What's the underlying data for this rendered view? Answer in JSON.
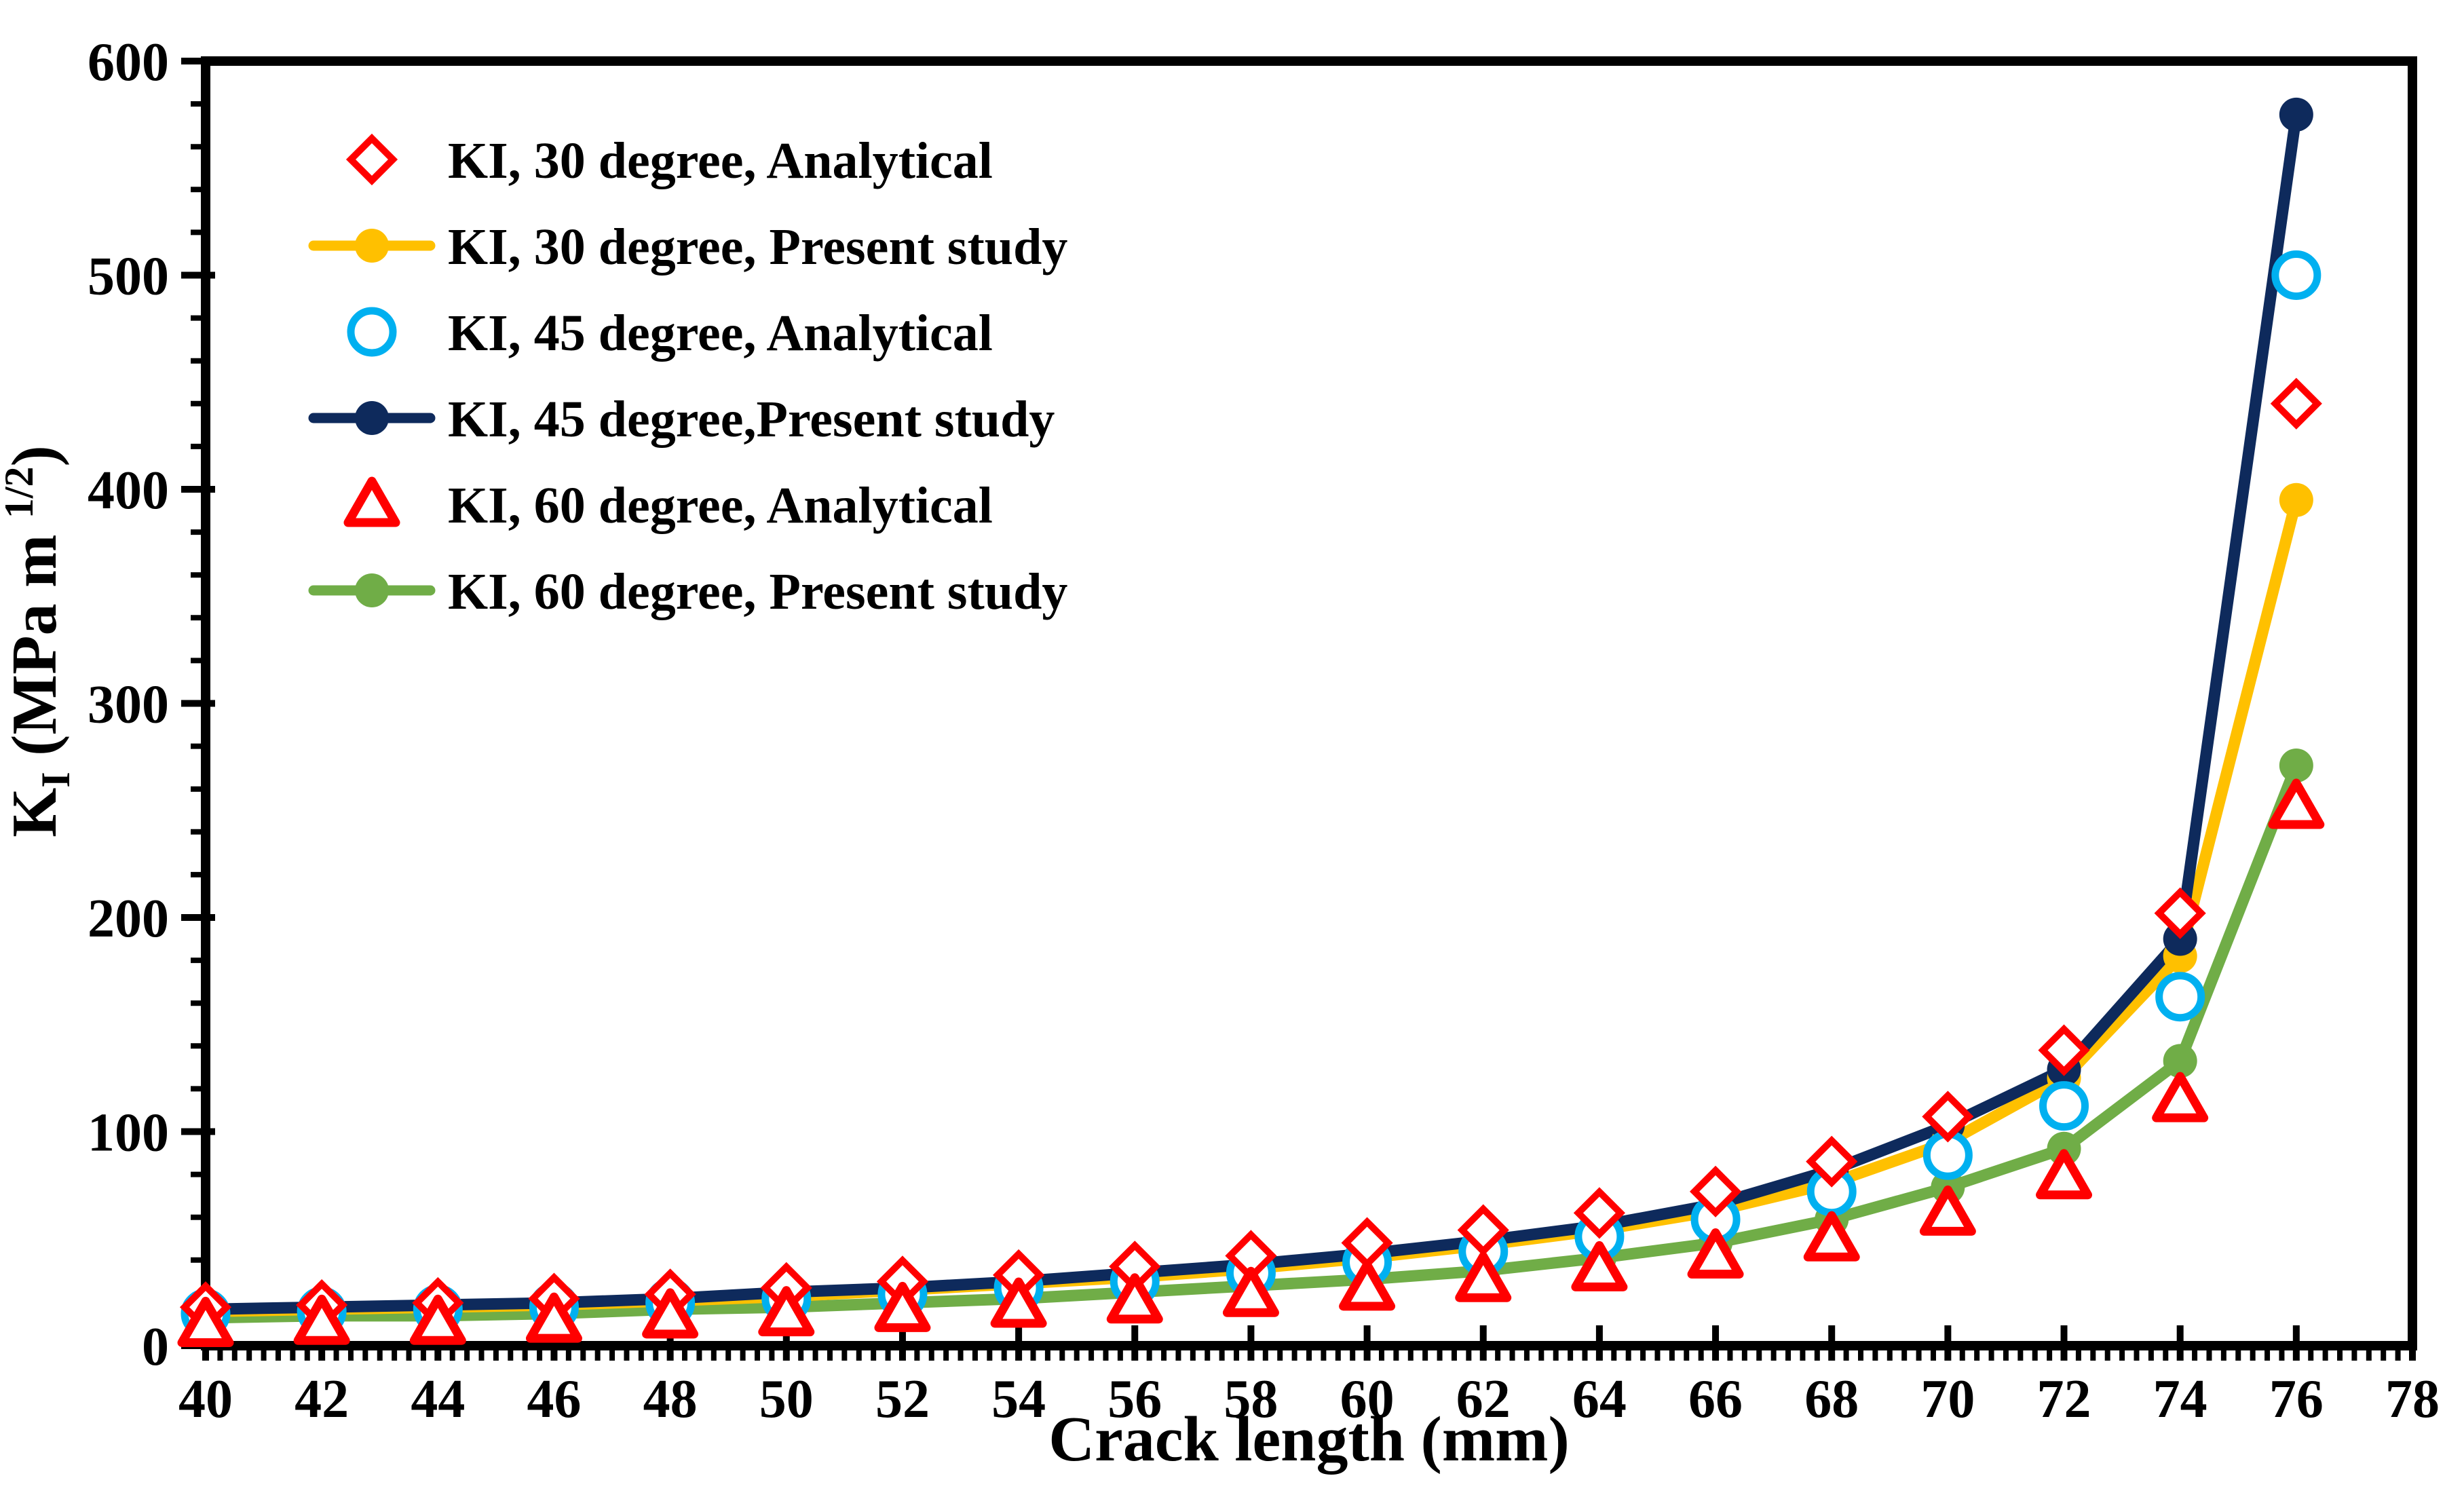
{
  "chart_data": {
    "type": "line",
    "title": "",
    "xlabel": "Crack length (mm)",
    "ylabel": "KI (MPa m 1/2)",
    "ylabel_parts": [
      {
        "text": "K",
        "style": "normal"
      },
      {
        "text": "I",
        "style": "sub"
      },
      {
        "text": " (MPa m ",
        "style": "normal"
      },
      {
        "text": "1/2",
        "style": "sup"
      },
      {
        "text": ")",
        "style": "normal"
      }
    ],
    "xlim": [
      40,
      78
    ],
    "ylim": [
      0,
      600
    ],
    "x_ticks": [
      40,
      42,
      44,
      46,
      48,
      50,
      52,
      54,
      56,
      58,
      60,
      62,
      64,
      66,
      68,
      70,
      72,
      74,
      76,
      78
    ],
    "y_ticks": [
      0,
      100,
      200,
      300,
      400,
      500,
      600
    ],
    "x_minor_step": 0.25,
    "y_minor_step": 20,
    "grid": false,
    "legend_position": "inside-top-left",
    "x": [
      40,
      42,
      44,
      46,
      48,
      50,
      52,
      54,
      56,
      58,
      60,
      62,
      64,
      66,
      68,
      70,
      72,
      74,
      76
    ],
    "series": [
      {
        "name": "KI, 30 degree, Analytical",
        "marker": "open-diamond",
        "color": "#FF0000",
        "line": false,
        "values": [
          18,
          19,
          20,
          22,
          24,
          27,
          30,
          33,
          37,
          42,
          48,
          54,
          62,
          72,
          86,
          107,
          138,
          202,
          440
        ]
      },
      {
        "name": "KI, 30 degree, Present study",
        "marker": "filled-circle",
        "color": "#FFC000",
        "line": true,
        "values": [
          16,
          17,
          18,
          19,
          21,
          23,
          26,
          29,
          32,
          36,
          41,
          47,
          54,
          63,
          76,
          95,
          125,
          182,
          395
        ]
      },
      {
        "name": "KI, 45 degree, Analytical",
        "marker": "open-circle",
        "color": "#00B0F0",
        "line": false,
        "values": [
          15,
          16,
          17,
          18,
          20,
          22,
          24,
          27,
          30,
          34,
          39,
          44,
          51,
          59,
          72,
          89,
          112,
          163,
          500
        ]
      },
      {
        "name": "KI, 45 degree,Present study",
        "marker": "filled-circle",
        "color": "#0E2A5C",
        "line": true,
        "values": [
          17,
          18,
          19,
          20,
          22,
          25,
          27,
          30,
          34,
          38,
          43,
          49,
          56,
          66,
          82,
          103,
          129,
          190,
          575
        ]
      },
      {
        "name": "KI, 60 degree, Analytical",
        "marker": "open-triangle",
        "color": "#FF0000",
        "line": false,
        "values": [
          10,
          11,
          11,
          12,
          14,
          15,
          17,
          19,
          21,
          24,
          27,
          31,
          36,
          42,
          50,
          62,
          79,
          115,
          252
        ]
      },
      {
        "name": "KI, 60 degree, Present study",
        "marker": "filled-circle",
        "color": "#70AD47",
        "line": true,
        "values": [
          13,
          14,
          14,
          15,
          17,
          18,
          20,
          22,
          25,
          28,
          31,
          35,
          41,
          48,
          59,
          74,
          92,
          133,
          271
        ]
      }
    ],
    "colors": {
      "axis": "#000000",
      "background": "#FFFFFF",
      "red": "#FF0000",
      "gold": "#FFC000",
      "cyan": "#00B0F0",
      "navy": "#0E2A5C",
      "green": "#70AD47"
    }
  }
}
